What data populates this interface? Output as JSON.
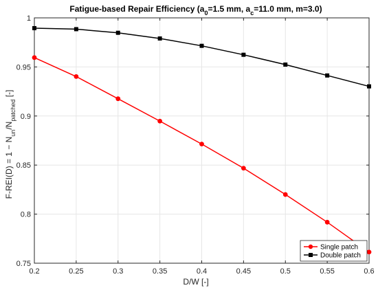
{
  "chart_data": {
    "type": "line",
    "title_parts": {
      "prefix": "Fatigue-based Repair Efficiency (a",
      "a0_sub": "0",
      "a0_text": "=1.5 mm, a",
      "ac_sub": "c",
      "ac_text": "=11.0 mm, m=3.0)"
    },
    "xlabel": "D/W [-]",
    "ylabel_parts": {
      "prefix": "F-REI(D) = 1 − N",
      "un_sub": "un",
      "mid": "/N",
      "patched_sub": "patched",
      "suffix": " [-]"
    },
    "xlim": [
      0.2,
      0.6
    ],
    "ylim": [
      0.75,
      1.0
    ],
    "xticks": [
      "0.2",
      "0.25",
      "0.3",
      "0.35",
      "0.4",
      "0.45",
      "0.5",
      "0.55",
      "0.6"
    ],
    "yticks": [
      "0.75",
      "0.8",
      "0.85",
      "0.9",
      "0.95",
      "1"
    ],
    "grid": true,
    "legend_position": "bottom-right",
    "x": [
      0.2,
      0.25,
      0.3,
      0.35,
      0.4,
      0.45,
      0.5,
      0.55,
      0.6
    ],
    "series": [
      {
        "name": "Single patch",
        "color": "#ff0000",
        "marker": "circle",
        "values": [
          0.9595,
          0.9402,
          0.9176,
          0.8948,
          0.8714,
          0.8468,
          0.82,
          0.7918,
          0.7614
        ]
      },
      {
        "name": "Double patch",
        "color": "#000000",
        "marker": "square",
        "values": [
          0.9895,
          0.9885,
          0.9848,
          0.979,
          0.9715,
          0.9624,
          0.9524,
          0.9413,
          0.9302
        ]
      }
    ]
  }
}
